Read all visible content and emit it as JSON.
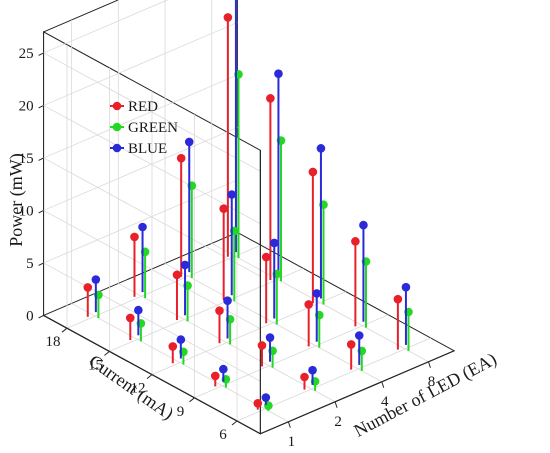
{
  "chart_data": {
    "type": "3d-stem",
    "title": "",
    "xlabel": "Number of LED (EA)",
    "ylabel": "Current (mA)",
    "zlabel": "Power (mW)",
    "x_ticks": [
      1,
      2,
      4,
      8
    ],
    "y_ticks": [
      6,
      9,
      12,
      15,
      18
    ],
    "z_ticks": [
      0,
      5,
      10,
      15,
      20,
      25
    ],
    "zlim": [
      0,
      27
    ],
    "grid": true,
    "legend_placement": "top-left",
    "series": [
      {
        "name": "RED",
        "color": "#e8202a",
        "values": [
          [
            0.6,
            1.2,
            2.4,
            4.8
          ],
          [
            1.0,
            2.0,
            4.0,
            8.1
          ],
          [
            1.6,
            3.1,
            6.3,
            12.5
          ],
          [
            2.1,
            4.3,
            8.7,
            17.3
          ],
          [
            2.8,
            5.7,
            11.3,
            22.8
          ]
        ]
      },
      {
        "name": "GREEN",
        "color": "#22d822",
        "values": [
          [
            0.5,
            0.9,
            1.9,
            3.7
          ],
          [
            0.8,
            1.6,
            3.1,
            6.3
          ],
          [
            1.2,
            2.4,
            4.8,
            9.5
          ],
          [
            1.7,
            3.4,
            6.7,
            13.4
          ],
          [
            2.2,
            4.4,
            8.8,
            17.5
          ]
        ]
      },
      {
        "name": "BLUE",
        "color": "#2a2ad8",
        "values": [
          [
            0.7,
            1.4,
            2.8,
            5.5
          ],
          [
            1.2,
            2.3,
            4.6,
            9.2
          ],
          [
            1.8,
            3.6,
            7.2,
            14.3
          ],
          [
            2.4,
            4.8,
            9.6,
            19.2
          ],
          [
            3.1,
            6.2,
            12.4,
            24.8
          ]
        ]
      }
    ]
  }
}
